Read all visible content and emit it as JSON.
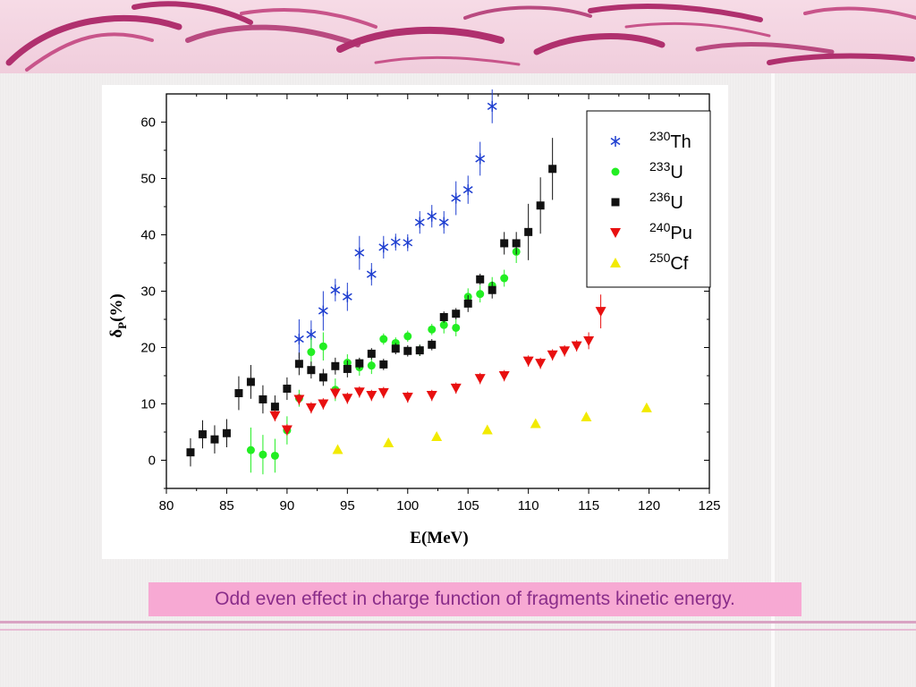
{
  "slide": {
    "caption": "Odd even effect in charge function of fragments kinetic energy."
  },
  "chart_data": {
    "type": "scatter",
    "xlabel": "E(MeV)",
    "ylabel": "δ",
    "ylabel_sub": "P",
    "ylabel_suffix": "(%)",
    "xlim": [
      80,
      125
    ],
    "ylim": [
      -5,
      65
    ],
    "xticks": [
      80,
      85,
      90,
      95,
      100,
      105,
      110,
      115,
      120,
      125
    ],
    "yticks": [
      0,
      10,
      20,
      30,
      40,
      50,
      60
    ],
    "grid": false,
    "legend_position": "top-right",
    "series": [
      {
        "name": "230Th",
        "sup": "230",
        "base": "Th",
        "marker": "asterisk",
        "color": "#1f3fd0",
        "x": [
          91,
          92,
          93,
          94,
          95,
          96,
          97,
          98,
          99,
          100,
          101,
          102,
          103,
          104,
          105,
          106,
          107
        ],
        "y": [
          21.5,
          22.3,
          26.5,
          30.2,
          29.0,
          36.8,
          33.0,
          37.8,
          38.7,
          38.6,
          42.2,
          43.3,
          42.2,
          46.5,
          48.0,
          53.5,
          62.8
        ],
        "err": [
          3.5,
          2.5,
          3.5,
          2.0,
          2.5,
          3.0,
          2.0,
          2.0,
          1.5,
          1.5,
          2.0,
          2.0,
          2.0,
          3.0,
          2.5,
          3.0,
          3.0
        ]
      },
      {
        "name": "233U",
        "sup": "233",
        "base": "U",
        "marker": "circle",
        "color": "#22ee22",
        "x": [
          87,
          88,
          89,
          90,
          91,
          92,
          93,
          94,
          95,
          96,
          97,
          98,
          99,
          100,
          101,
          102,
          103,
          104,
          105,
          106,
          107,
          108,
          109
        ],
        "y": [
          1.8,
          1.0,
          0.8,
          5.3,
          11.0,
          19.2,
          20.2,
          12.5,
          17.3,
          16.5,
          16.8,
          21.5,
          20.8,
          22.0,
          19.5,
          23.2,
          24.0,
          23.5,
          29.0,
          29.5,
          31.0,
          32.3,
          37.0
        ],
        "err": [
          4.0,
          3.5,
          3.0,
          2.5,
          1.5,
          2.5,
          2.5,
          2.0,
          1.5,
          1.5,
          1.5,
          1.0,
          1.0,
          1.0,
          1.0,
          1.0,
          1.5,
          1.5,
          1.5,
          1.5,
          1.5,
          1.5,
          2.0
        ]
      },
      {
        "name": "236U",
        "sup": "236",
        "base": "U",
        "marker": "square",
        "color": "#111111",
        "x": [
          82,
          83,
          84,
          85,
          86,
          87,
          88,
          89,
          90,
          91,
          92,
          93,
          94,
          95,
          96,
          97,
          98,
          99,
          100,
          101,
          102,
          103,
          104,
          105,
          106,
          107,
          108,
          109,
          110,
          111,
          112
        ],
        "y": [
          1.4,
          4.6,
          3.7,
          4.8,
          11.9,
          13.9,
          10.8,
          9.5,
          12.7,
          17.1,
          16.0,
          14.7,
          16.7,
          16.2,
          17.2,
          18.9,
          17.0,
          19.8,
          19.4,
          19.5,
          20.5,
          25.4,
          26.0,
          27.8,
          32.1,
          30.2,
          38.5,
          38.5,
          40.5,
          45.2,
          51.7
        ],
        "err": [
          2.5,
          2.5,
          2.5,
          2.5,
          3.0,
          3.0,
          2.5,
          2.0,
          2.0,
          2.0,
          1.5,
          1.5,
          1.5,
          1.5,
          1.0,
          1.0,
          1.0,
          1.0,
          1.0,
          1.0,
          1.0,
          1.0,
          1.0,
          1.5,
          1.0,
          1.5,
          2.0,
          2.0,
          5.0,
          5.0,
          5.5
        ]
      },
      {
        "name": "240Pu",
        "sup": "240",
        "base": "Pu",
        "marker": "triangle-down",
        "color": "#e81010",
        "x": [
          89,
          90,
          91,
          92,
          93,
          94,
          95,
          96,
          97,
          98,
          100,
          102,
          104,
          106,
          108,
          110,
          111,
          112,
          113,
          114,
          115,
          116
        ],
        "y": [
          7.9,
          5.4,
          10.8,
          9.3,
          10.0,
          11.9,
          11.0,
          12.1,
          11.5,
          12.0,
          11.2,
          11.5,
          12.8,
          14.5,
          15.0,
          17.6,
          17.2,
          18.7,
          19.4,
          20.3,
          21.2,
          26.4
        ],
        "err": [
          1.0,
          1.0,
          1.0,
          1.0,
          1.0,
          1.0,
          1.0,
          1.0,
          1.0,
          1.0,
          1.0,
          1.0,
          1.0,
          1.0,
          1.0,
          1.0,
          1.0,
          1.0,
          1.0,
          1.0,
          1.5,
          3.0
        ]
      },
      {
        "name": "250Cf",
        "sup": "250",
        "base": "Cf",
        "marker": "triangle-up",
        "color": "#f2ea00",
        "x": [
          94.2,
          98.4,
          102.4,
          106.6,
          110.6,
          114.8,
          119.8
        ],
        "y": [
          1.9,
          3.1,
          4.2,
          5.4,
          6.5,
          7.7,
          9.3
        ],
        "err": [
          0,
          0,
          0,
          0,
          0,
          0,
          0
        ]
      }
    ]
  }
}
